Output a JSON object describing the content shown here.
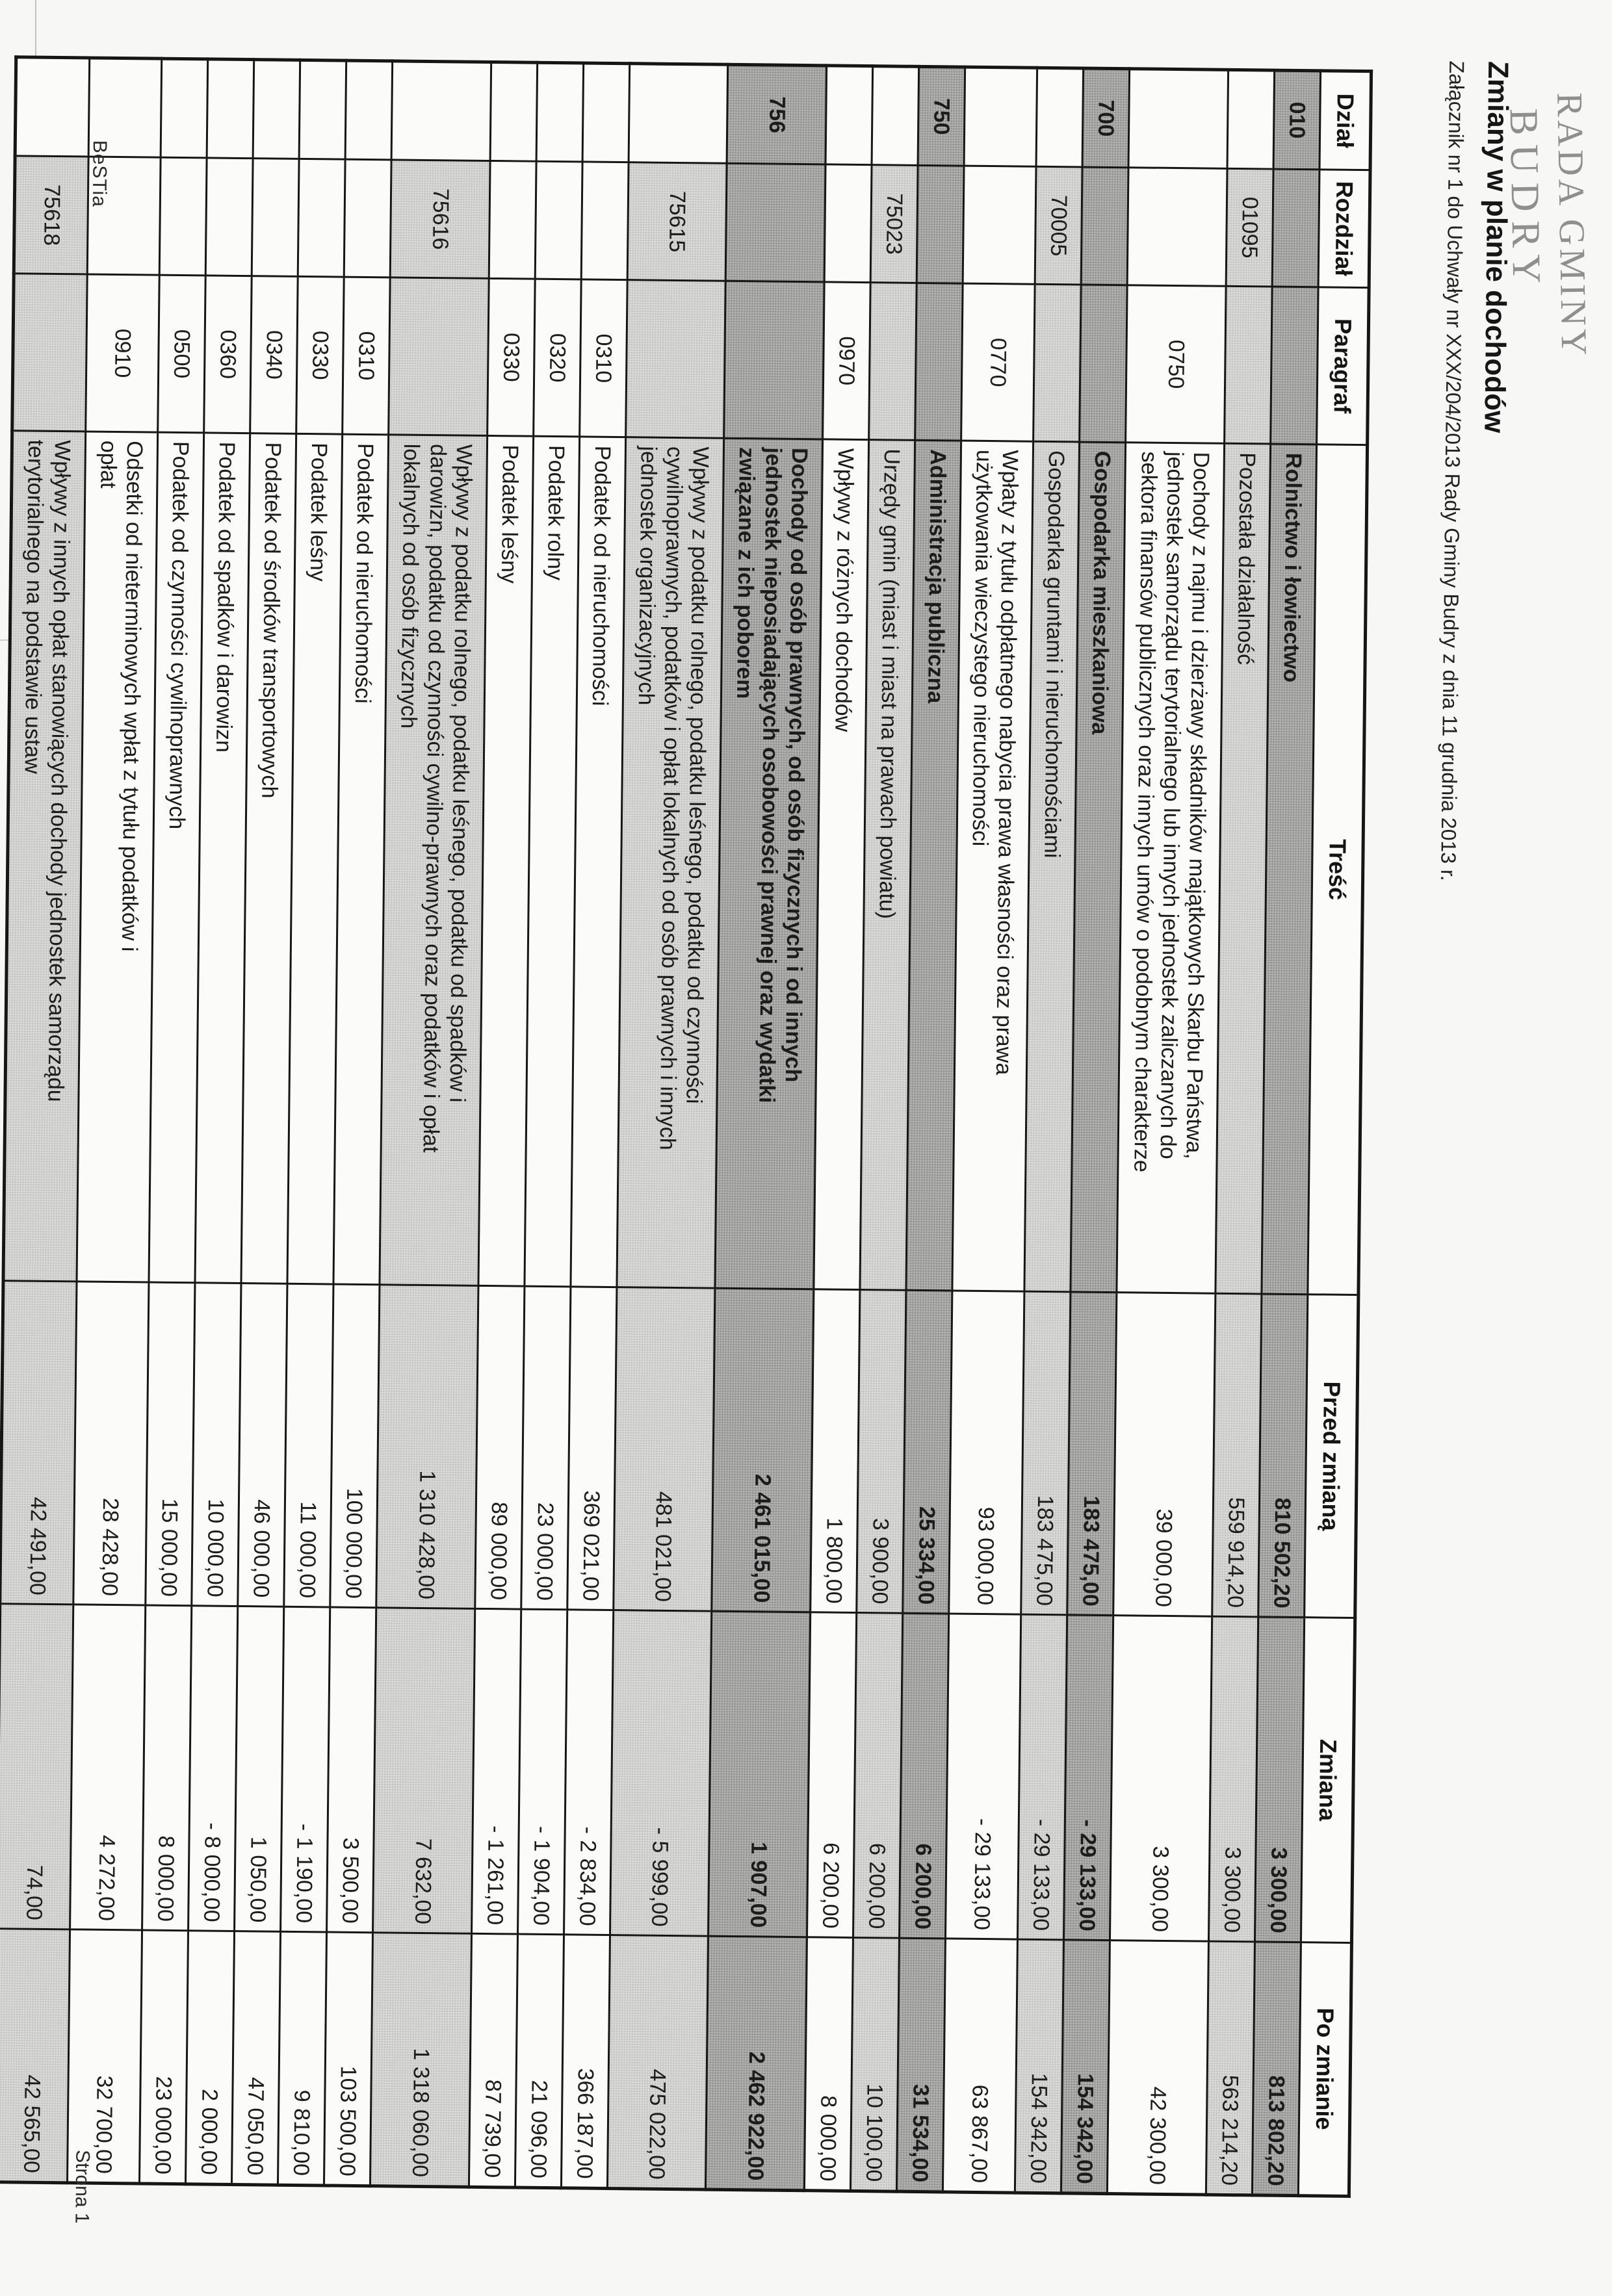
{
  "page": {
    "stamp_line1": "RADA GMINY",
    "stamp_line2": "BUDRY",
    "title": "Zmiany w planie dochodów",
    "subtitle": "Załącznik nr 1 do Uchwały nr XXX/204/2013 Rady Gminy Budry z dnia 11 grudnia 2013 r.",
    "footer_left": "BeSTia",
    "footer_right": "Strona 1"
  },
  "table": {
    "headers": {
      "dzial": "Dział",
      "rozdzial": "Rozdział",
      "paragraf": "Paragraf",
      "tresc": "Treść",
      "przed": "Przed zmianą",
      "zmiana": "Zmiana",
      "po": "Po zmianie"
    },
    "rows": [
      {
        "level": "dzial",
        "dzial": "010",
        "rozdzial": "",
        "paragraf": "",
        "tresc": "Rolnictwo i łowiectwo",
        "przed": "810 502,20",
        "zmiana": "3 300,00",
        "po": "813 802,20"
      },
      {
        "level": "rozdzial",
        "dzial": "",
        "rozdzial": "01095",
        "paragraf": "",
        "tresc": "Pozostała działalność",
        "przed": "559 914,20",
        "zmiana": "3 300,00",
        "po": "563 214,20"
      },
      {
        "level": "paragraf",
        "dzial": "",
        "rozdzial": "",
        "paragraf": "0750",
        "tresc": "Dochody z najmu i dzierżawy składników majątkowych Skarbu Państwa,\njednostek samorządu terytorialnego lub innych jednostek zaliczanych do\nsektora finansów publicznych oraz innych umów o podobnym charakterze",
        "przed": "39 000,00",
        "zmiana": "3 300,00",
        "po": "42 300,00"
      },
      {
        "level": "dzial",
        "dzial": "700",
        "rozdzial": "",
        "paragraf": "",
        "tresc": "Gospodarka mieszkaniowa",
        "przed": "183 475,00",
        "zmiana": "- 29 133,00",
        "po": "154 342,00"
      },
      {
        "level": "rozdzial",
        "dzial": "",
        "rozdzial": "70005",
        "paragraf": "",
        "tresc": "Gospodarka gruntami i nieruchomościami",
        "przed": "183 475,00",
        "zmiana": "- 29 133,00",
        "po": "154 342,00"
      },
      {
        "level": "paragraf",
        "dzial": "",
        "rozdzial": "",
        "paragraf": "0770",
        "tresc": "Wpłaty z tytułu odpłatnego nabycia prawa własności oraz prawa\nużytkowania wieczystego nieruchomości",
        "przed": "93 000,00",
        "zmiana": "- 29 133,00",
        "po": "63 867,00"
      },
      {
        "level": "dzial",
        "dzial": "750",
        "rozdzial": "",
        "paragraf": "",
        "tresc": "Administracja publiczna",
        "przed": "25 334,00",
        "zmiana": "6 200,00",
        "po": "31 534,00"
      },
      {
        "level": "rozdzial",
        "dzial": "",
        "rozdzial": "75023",
        "paragraf": "",
        "tresc": "Urzędy gmin (miast i miast na prawach powiatu)",
        "przed": "3 900,00",
        "zmiana": "6 200,00",
        "po": "10 100,00"
      },
      {
        "level": "paragraf",
        "dzial": "",
        "rozdzial": "",
        "paragraf": "0970",
        "tresc": "Wpływy z różnych dochodów",
        "przed": "1 800,00",
        "zmiana": "6 200,00",
        "po": "8 000,00"
      },
      {
        "level": "dzial",
        "dzial": "756",
        "rozdzial": "",
        "paragraf": "",
        "tresc": "Dochody od osób prawnych, od osób fizycznych i od innych\njednostek nieposiadających osobowości prawnej oraz wydatki\nzwiązane z ich poborem",
        "przed": "2 461 015,00",
        "zmiana": "1 907,00",
        "po": "2 462 922,00"
      },
      {
        "level": "rozdzial",
        "dzial": "",
        "rozdzial": "75615",
        "paragraf": "",
        "tresc": "Wpływy z podatku rolnego, podatku leśnego, podatku od czynności\ncywilnoprawnych, podatków i opłat lokalnych od osób prawnych i innych\njednostek organizacyjnych",
        "przed": "481 021,00",
        "zmiana": "- 5 999,00",
        "po": "475 022,00"
      },
      {
        "level": "paragraf",
        "dzial": "",
        "rozdzial": "",
        "paragraf": "0310",
        "tresc": "Podatek od nieruchomości",
        "przed": "369 021,00",
        "zmiana": "- 2 834,00",
        "po": "366 187,00"
      },
      {
        "level": "paragraf",
        "dzial": "",
        "rozdzial": "",
        "paragraf": "0320",
        "tresc": "Podatek rolny",
        "przed": "23 000,00",
        "zmiana": "- 1 904,00",
        "po": "21 096,00"
      },
      {
        "level": "paragraf",
        "dzial": "",
        "rozdzial": "",
        "paragraf": "0330",
        "tresc": "Podatek leśny",
        "przed": "89 000,00",
        "zmiana": "- 1 261,00",
        "po": "87 739,00"
      },
      {
        "level": "rozdzial",
        "dzial": "",
        "rozdzial": "75616",
        "paragraf": "",
        "tresc": "Wpływy z podatku rolnego, podatku leśnego, podatku od spadków i\ndarowizn, podatku od czynności cywilno-prawnych oraz podatków i opłat\nlokalnych od osób fizycznych",
        "przed": "1 310 428,00",
        "zmiana": "7 632,00",
        "po": "1 318 060,00"
      },
      {
        "level": "paragraf",
        "dzial": "",
        "rozdzial": "",
        "paragraf": "0310",
        "tresc": "Podatek od nieruchomości",
        "przed": "100 000,00",
        "zmiana": "3 500,00",
        "po": "103 500,00"
      },
      {
        "level": "paragraf",
        "dzial": "",
        "rozdzial": "",
        "paragraf": "0330",
        "tresc": "Podatek leśny",
        "przed": "11 000,00",
        "zmiana": "- 1 190,00",
        "po": "9 810,00"
      },
      {
        "level": "paragraf",
        "dzial": "",
        "rozdzial": "",
        "paragraf": "0340",
        "tresc": "Podatek od środków transportowych",
        "przed": "46 000,00",
        "zmiana": "1 050,00",
        "po": "47 050,00"
      },
      {
        "level": "paragraf",
        "dzial": "",
        "rozdzial": "",
        "paragraf": "0360",
        "tresc": "Podatek od spadków i darowizn",
        "przed": "10 000,00",
        "zmiana": "- 8 000,00",
        "po": "2 000,00"
      },
      {
        "level": "paragraf",
        "dzial": "",
        "rozdzial": "",
        "paragraf": "0500",
        "tresc": "Podatek od czynności cywilnoprawnych",
        "przed": "15 000,00",
        "zmiana": "8 000,00",
        "po": "23 000,00"
      },
      {
        "level": "paragraf",
        "dzial": "",
        "rozdzial": "",
        "paragraf": "0910",
        "tresc": "Odsetki od nieterminowych wpłat z tytułu podatków i\nopłat",
        "przed": "28 428,00",
        "zmiana": "4 272,00",
        "po": "32 700,00"
      },
      {
        "level": "rozdzial",
        "dzial": "",
        "rozdzial": "75618",
        "paragraf": "",
        "tresc": "Wpływy z innych opłat stanowiących dochody jednostek samorządu\nterytorialnego na podstawie ustaw",
        "przed": "42 491,00",
        "zmiana": "74,00",
        "po": "42 565,00"
      }
    ]
  }
}
